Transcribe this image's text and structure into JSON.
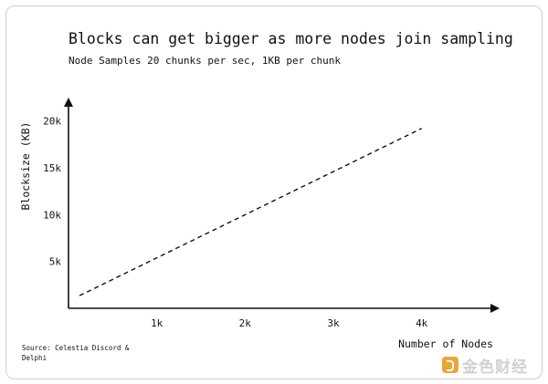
{
  "watermark": {
    "text": "金色财经",
    "icon": "golden-finance-logo-icon"
  },
  "source": "Source: Celestia Discord & Delphi",
  "chart_data": {
    "type": "line",
    "title": "Blocks can get bigger as more nodes join sampling",
    "subtitle": "Node Samples 20 chunks per sec, 1KB per chunk",
    "xlabel": "Number of Nodes",
    "ylabel": "Blocksize (KB)",
    "xticks": [
      "1k",
      "2k",
      "3k",
      "4k"
    ],
    "yticks": [
      "5k",
      "10k",
      "15k",
      "20k"
    ],
    "xtick_values": [
      1000,
      2000,
      3000,
      4000
    ],
    "ytick_values": [
      5000,
      10000,
      15000,
      20000
    ],
    "xlim": [
      0,
      4800
    ],
    "ylim": [
      0,
      22000
    ],
    "grid": false,
    "line_style": "dashed",
    "series": [
      {
        "x": [
          125,
          4000
        ],
        "y": [
          1350,
          19200
        ]
      }
    ]
  }
}
